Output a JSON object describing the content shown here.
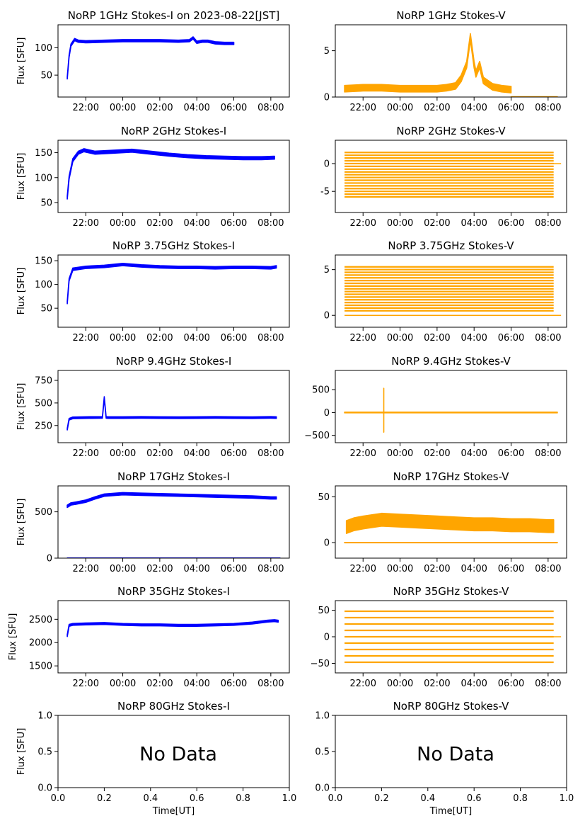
{
  "x_time_ticks": [
    "22:00",
    "00:00",
    "02:00",
    "04:00",
    "06:00",
    "08:00"
  ],
  "x_unit_ticks": [
    "0.0",
    "0.2",
    "0.4",
    "0.6",
    "0.8",
    "1.0"
  ],
  "x_axis_label": "Time[UT]",
  "y_axis_label_i": "Flux [SFU]",
  "no_data_text": "No Data",
  "colors": {
    "stokes_i": "#0000ff",
    "stokes_v": "#ffa500"
  },
  "chart_data": [
    {
      "id": "p0",
      "type": "scatter",
      "title": "NoRP 1GHz Stokes-I on 2023-08-22[JST]",
      "ylabel": "Flux [SFU]",
      "xlim": [
        20.5,
        33
      ],
      "ylim": [
        10,
        142
      ],
      "yticks": [
        50,
        100
      ],
      "ytick_labels": [
        "50",
        "100"
      ],
      "series": [
        {
          "kind": "I",
          "x": [
            21.0,
            21.05,
            21.1,
            21.2,
            21.4,
            21.6,
            22,
            23,
            24,
            25,
            26,
            27,
            27.6,
            27.8,
            28,
            28.3,
            28.6,
            29,
            29.5,
            30
          ],
          "y": [
            45,
            65,
            85,
            105,
            115,
            112,
            111,
            112,
            113,
            113,
            113,
            112,
            113,
            118,
            110,
            112,
            112,
            109,
            108,
            108
          ],
          "band": 4
        }
      ]
    },
    {
      "id": "p1",
      "type": "scatter",
      "title": "NoRP 1GHz Stokes-V",
      "xlim": [
        20.5,
        33
      ],
      "ylim": [
        0,
        7.8
      ],
      "yticks": [
        0,
        5
      ],
      "ytick_labels": [
        "0",
        "5"
      ],
      "series": [
        {
          "kind": "V",
          "x": [
            21,
            22,
            23,
            24,
            25,
            26,
            26.5,
            27,
            27.3,
            27.6,
            27.8,
            28,
            28.1,
            28.3,
            28.5,
            29,
            29.5,
            30
          ],
          "y": [
            0.9,
            1.0,
            1.0,
            0.9,
            0.9,
            0.9,
            1.0,
            1.2,
            2,
            3.5,
            6.5,
            3.5,
            2.5,
            3.5,
            1.8,
            1.1,
            0.9,
            0.8
          ],
          "band": 0.7
        },
        {
          "kind": "V",
          "x": [
            30,
            32.5
          ],
          "y": [
            0.02,
            0.02
          ],
          "band": 0.03
        }
      ]
    },
    {
      "id": "p2",
      "type": "scatter",
      "title": "NoRP 2GHz Stokes-I",
      "ylabel": "Flux [SFU]",
      "xlim": [
        20.5,
        33
      ],
      "ylim": [
        30,
        175
      ],
      "yticks": [
        50,
        100,
        150
      ],
      "ytick_labels": [
        "50",
        "100",
        "150"
      ],
      "series": [
        {
          "kind": "I",
          "x": [
            21.0,
            21.1,
            21.3,
            21.6,
            21.9,
            22.5,
            23.5,
            24.5,
            25.5,
            26.5,
            27.5,
            28.5,
            29.5,
            30.5,
            31.5,
            32.2
          ],
          "y": [
            60,
            100,
            135,
            150,
            155,
            150,
            152,
            154,
            150,
            146,
            143,
            141,
            140,
            139,
            139,
            140
          ],
          "band": 6
        }
      ]
    },
    {
      "id": "p3",
      "type": "levels",
      "title": "NoRP 2GHz Stokes-V",
      "xlim": [
        20.5,
        33
      ],
      "ylim": [
        -8.8,
        4.2
      ],
      "yticks": [
        -5,
        0
      ],
      "ytick_labels": [
        "-5",
        "0"
      ],
      "levels": {
        "from": -6,
        "to": 2,
        "step": 0.5
      },
      "x_range": [
        21.0,
        32.3
      ]
    },
    {
      "id": "p4",
      "type": "scatter",
      "title": "NoRP 3.75GHz Stokes-I",
      "ylabel": "Flux [SFU]",
      "xlim": [
        20.5,
        33
      ],
      "ylim": [
        10,
        162
      ],
      "yticks": [
        50,
        100,
        150
      ],
      "ytick_labels": [
        "50",
        "100",
        "150"
      ],
      "series": [
        {
          "kind": "I",
          "x": [
            21.0,
            21.1,
            21.3,
            22,
            23,
            24,
            25,
            26,
            27,
            28,
            29,
            30,
            31,
            32,
            32.3
          ],
          "y": [
            62,
            110,
            132,
            136,
            138,
            142,
            139,
            137,
            136,
            136,
            135,
            136,
            136,
            135,
            137
          ],
          "band": 5
        }
      ]
    },
    {
      "id": "p5",
      "type": "levels",
      "title": "NoRP 3.75GHz Stokes-V",
      "xlim": [
        20.5,
        33
      ],
      "ylim": [
        -1.3,
        6.6
      ],
      "yticks": [
        0,
        5
      ],
      "ytick_labels": [
        "0",
        "5"
      ],
      "levels": {
        "from": 0.5,
        "to": 5.5,
        "step": 0.3
      },
      "x_range": [
        21.0,
        32.3
      ]
    },
    {
      "id": "p6",
      "type": "scatter",
      "title": "NoRP 9.4GHz Stokes-I",
      "ylabel": "Flux [SFU]",
      "xlim": [
        20.5,
        33
      ],
      "ylim": [
        60,
        860
      ],
      "yticks": [
        250,
        500,
        750
      ],
      "ytick_labels": [
        "250",
        "500",
        "750"
      ],
      "series": [
        {
          "kind": "I",
          "x": [
            21.0,
            21.1,
            21.3,
            22,
            22.9,
            23.0,
            23.1,
            23.2,
            24,
            25,
            26,
            27,
            28,
            29,
            30,
            31,
            32,
            32.3
          ],
          "y": [
            210,
            320,
            335,
            338,
            340,
            560,
            340,
            338,
            338,
            340,
            338,
            337,
            338,
            340,
            338,
            337,
            340,
            338
          ],
          "band": 18
        }
      ]
    },
    {
      "id": "p7",
      "type": "scatter",
      "title": "NoRP 9.4GHz Stokes-V",
      "xlim": [
        20.5,
        33
      ],
      "ylim": [
        -660,
        920
      ],
      "yticks": [
        -500,
        0,
        500
      ],
      "ytick_labels": [
        "−500",
        "0",
        "500"
      ],
      "series": [
        {
          "kind": "V",
          "x": [
            21,
            22,
            23.0,
            23.1,
            23.2,
            24,
            25,
            26,
            27,
            28,
            29,
            30,
            31,
            32,
            32.5
          ],
          "y": [
            0,
            0,
            0,
            0,
            0,
            0,
            0,
            0,
            0,
            0,
            0,
            0,
            0,
            0,
            0
          ],
          "band": 15
        },
        {
          "kind": "V",
          "x": [
            23.12,
            23.12
          ],
          "y": [
            -420,
            520
          ],
          "band": 20
        }
      ]
    },
    {
      "id": "p8",
      "type": "scatter",
      "title": "NoRP 17GHz Stokes-I",
      "ylabel": "Flux [SFU]",
      "xlim": [
        20.5,
        33
      ],
      "ylim": [
        0,
        780
      ],
      "yticks": [
        0,
        500
      ],
      "ytick_labels": [
        "0",
        "500"
      ],
      "series": [
        {
          "kind": "I",
          "x": [
            21.0,
            21.2,
            21.5,
            22,
            22.5,
            23,
            24,
            25,
            26,
            27,
            28,
            29,
            30,
            31,
            32,
            32.3
          ],
          "y": [
            560,
            585,
            595,
            615,
            650,
            680,
            695,
            690,
            685,
            680,
            675,
            670,
            665,
            660,
            650,
            650
          ],
          "band": 25
        },
        {
          "kind": "I",
          "x": [
            21,
            32.5
          ],
          "y": [
            0,
            0
          ],
          "band": 4
        }
      ]
    },
    {
      "id": "p9",
      "type": "scatter",
      "title": "NoRP 17GHz Stokes-V",
      "xlim": [
        20.5,
        33
      ],
      "ylim": [
        -17,
        62
      ],
      "yticks": [
        0,
        50
      ],
      "ytick_labels": [
        "0",
        "50"
      ],
      "series": [
        {
          "kind": "V",
          "x": [
            21.1,
            21.5,
            22,
            23,
            24,
            25,
            26,
            27,
            28,
            29,
            30,
            31,
            32,
            32.3
          ],
          "y": [
            17,
            20,
            22,
            25,
            24,
            23,
            22,
            21,
            20,
            20,
            19,
            19,
            18,
            18
          ],
          "band": 14
        },
        {
          "kind": "V",
          "x": [
            21,
            32.5
          ],
          "y": [
            0,
            0
          ],
          "band": 0.4
        }
      ]
    },
    {
      "id": "p10",
      "type": "scatter",
      "title": "NoRP 35GHz Stokes-I",
      "ylabel": "Flux [SFU]",
      "xlim": [
        20.5,
        33
      ],
      "ylim": [
        1350,
        2900
      ],
      "yticks": [
        1500,
        2000,
        2500
      ],
      "ytick_labels": [
        "1500",
        "2000",
        "2500"
      ],
      "series": [
        {
          "kind": "I",
          "x": [
            21.0,
            21.1,
            21.3,
            22,
            23,
            24,
            25,
            26,
            27,
            28,
            29,
            30,
            31,
            31.8,
            32.2,
            32.4
          ],
          "y": [
            2150,
            2370,
            2390,
            2400,
            2410,
            2390,
            2380,
            2380,
            2370,
            2370,
            2380,
            2390,
            2420,
            2460,
            2470,
            2460
          ],
          "band": 40
        }
      ]
    },
    {
      "id": "p11",
      "type": "levels",
      "title": "NoRP 35GHz Stokes-V",
      "xlim": [
        20.5,
        33
      ],
      "ylim": [
        -68,
        68
      ],
      "yticks": [
        -50,
        0,
        50
      ],
      "ytick_labels": [
        "−50",
        "0",
        "50"
      ],
      "levels": {
        "from": -48,
        "to": 48,
        "step": 12
      },
      "x_range": [
        21.0,
        32.3
      ]
    },
    {
      "id": "p12",
      "type": "empty",
      "title": "NoRP 80GHz Stokes-I",
      "ylabel": "Flux [SFU]",
      "xlabel": "Time[UT]",
      "xlim": [
        0,
        1
      ],
      "ylim": [
        0,
        1
      ],
      "yticks": [
        0,
        0.5,
        1
      ],
      "ytick_labels": [
        "0.0",
        "0.5",
        "1.0"
      ]
    },
    {
      "id": "p13",
      "type": "empty",
      "title": "NoRP 80GHz Stokes-V",
      "xlabel": "Time[UT]",
      "xlim": [
        0,
        1
      ],
      "ylim": [
        0,
        1
      ],
      "yticks": [
        0,
        0.5,
        1
      ],
      "ytick_labels": [
        "0.0",
        "0.5",
        "1.0"
      ]
    }
  ]
}
